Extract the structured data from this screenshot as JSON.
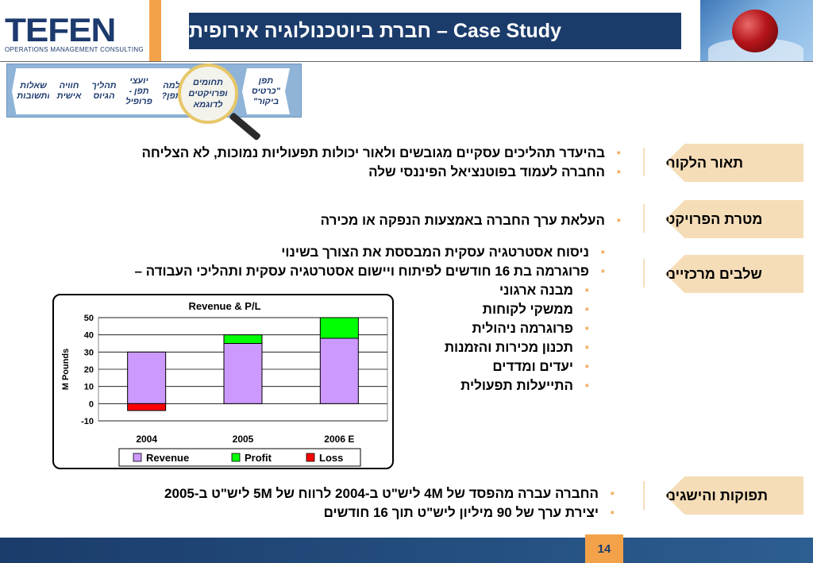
{
  "header": {
    "logo_main": "TEFEN",
    "logo_sub": "OPERATIONS MANAGEMENT CONSULTING",
    "title": "Case Study – חברת ביוטכנולוגיה אירופית"
  },
  "process_steps": [
    "שאלות ותשובות",
    "חוויה אישית",
    "תהליך הגיוס",
    "יועצי תפן - פרופיל",
    "למה תפן?",
    "תחומים ופרויקטים לדוגמא",
    "תפן \"כרטיס ביקור\""
  ],
  "sections": {
    "client": {
      "label": "תאור הלקוח",
      "bullets": [
        "בהיעדר תהליכים עסקיים מגובשים ולאור יכולות תפעוליות נמוכות, לא הצליחה",
        "החברה לעמוד בפוטנציאל הפיננסי שלה"
      ]
    },
    "goal": {
      "label": "מטרת הפרויקט",
      "bullets": [
        "העלאת ערך החברה באמצעות הנפקה או מכירה"
      ]
    },
    "steps": {
      "label": "שלבים מרכזיים",
      "bullets": [
        "ניסוח אסטרטגיה עסקית המבססת את הצורך בשינוי",
        "פרוגרמה בת 16 חודשים לפיתוח ויישום אסטרטגיה עסקית ותהליכי העבודה –",
        "מבנה ארגוני",
        "ממשקי לקוחות",
        "פרוגרמה ניהולית",
        "תכנון מכירות והזמנות",
        "יעדים ומדדים",
        "התייעלות תפעולית"
      ]
    },
    "results": {
      "label": "תפוקות והישגים",
      "bullets": [
        "החברה עברה מהפסד של 4M ליש\"ט ב-2004 לרווח של 5M ליש\"ט ב-2005",
        "יצירת ערך של 90 מיליון ליש\"ט תוך 16 חודשים"
      ]
    }
  },
  "chart_data": {
    "type": "bar",
    "title": "Revenue & P/L",
    "ylabel": "M Pounds",
    "xlabel": "",
    "categories": [
      "2004",
      "2005",
      "2006 E"
    ],
    "series": [
      {
        "name": "Revenue",
        "color": "#cc99ff",
        "values": [
          30,
          35,
          38
        ]
      },
      {
        "name": "Profit",
        "color": "#00ff00",
        "values": [
          0,
          5,
          12
        ]
      },
      {
        "name": "Loss",
        "color": "#ff0000",
        "values": [
          -4,
          0,
          0
        ]
      }
    ],
    "ylim": [
      -10,
      50
    ],
    "yticks": [
      -10,
      0,
      10,
      20,
      30,
      40,
      50
    ],
    "stacked": true,
    "grid": true,
    "legend_position": "bottom"
  },
  "footer": {
    "page_number": "14"
  },
  "colors": {
    "navy": "#1b3c6b",
    "orange": "#f4a24a",
    "label_bg": "#f5ddb8",
    "bullet": "#f0b36a"
  }
}
